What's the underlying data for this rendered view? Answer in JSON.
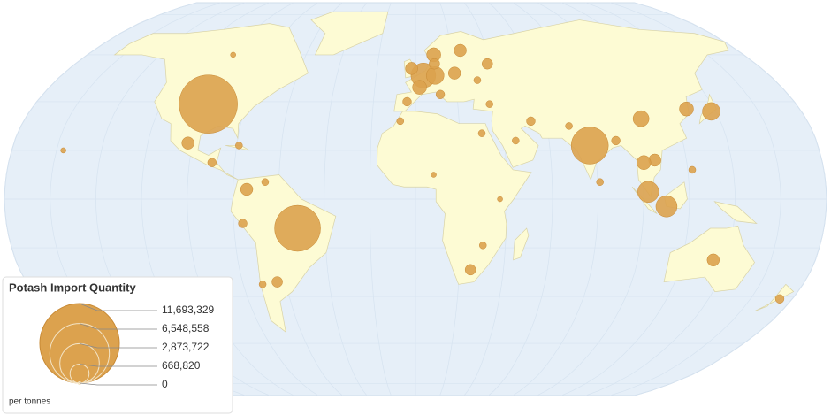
{
  "legend": {
    "title": "Potash Import Quantity",
    "values": [
      {
        "value": 11693329,
        "label": "11,693,329"
      },
      {
        "value": 6548558,
        "label": "6,548,558"
      },
      {
        "value": 2873722,
        "label": "2,873,722"
      },
      {
        "value": 668820,
        "label": "668,820"
      },
      0
    ],
    "unit": "per tonnes"
  },
  "color": "#dca24e",
  "bubbles": [
    {
      "lon": -98,
      "lat": 39,
      "value": 6290000
    },
    {
      "lon": -52,
      "lat": -12,
      "value": 3900000
    },
    {
      "lon": 78,
      "lat": 22,
      "value": 2550000
    },
    {
      "lon": 104,
      "lat": 33,
      "value": 470000
    },
    {
      "lon": 138,
      "lat": 36,
      "value": 580000
    },
    {
      "lon": 127,
      "lat": 37,
      "value": 370000
    },
    {
      "lon": 102,
      "lat": 3,
      "value": 830000
    },
    {
      "lon": 110,
      "lat": -3,
      "value": 830000
    },
    {
      "lon": 4,
      "lat": 51,
      "value": 1130000
    },
    {
      "lon": 2,
      "lat": 46,
      "value": 370000
    },
    {
      "lon": 10,
      "lat": 51,
      "value": 580000
    },
    {
      "lon": 20,
      "lat": 52,
      "value": 280000
    },
    {
      "lon": -2,
      "lat": 54,
      "value": 280000
    },
    {
      "lon": 10,
      "lat": 60,
      "value": 370000
    },
    {
      "lon": 25,
      "lat": 62,
      "value": 280000
    },
    {
      "lon": 10,
      "lat": 56,
      "value": 210000
    },
    {
      "lon": -4,
      "lat": 40,
      "value": 140000
    },
    {
      "lon": 12,
      "lat": 43,
      "value": 140000
    },
    {
      "lon": 106,
      "lat": 16,
      "value": 280000
    },
    {
      "lon": 101,
      "lat": 15,
      "value": 370000
    },
    {
      "lon": -102,
      "lat": 23,
      "value": 280000
    },
    {
      "lon": -74,
      "lat": 4,
      "value": 280000
    },
    {
      "lon": -64,
      "lat": -34,
      "value": 210000
    },
    {
      "lon": -71,
      "lat": -35,
      "value": 92000
    },
    {
      "lon": 134,
      "lat": -25,
      "value": 280000
    },
    {
      "lon": 174,
      "lat": -41,
      "value": 140000
    },
    {
      "lon": -100,
      "lat": 60,
      "value": 52000
    },
    {
      "lon": 25,
      "lat": -29,
      "value": 210000
    },
    {
      "lon": 30,
      "lat": 27,
      "value": 92000
    },
    {
      "lon": 45,
      "lat": 24,
      "value": 92000
    },
    {
      "lon": 53,
      "lat": 32,
      "value": 140000
    },
    {
      "lon": 35,
      "lat": 39,
      "value": 92000
    },
    {
      "lon": 81,
      "lat": 7,
      "value": 92000
    },
    {
      "lon": 122,
      "lat": 12,
      "value": 92000
    },
    {
      "lon": 90,
      "lat": 24,
      "value": 140000
    },
    {
      "lon": 70,
      "lat": 30,
      "value": 92000
    },
    {
      "lon": 31,
      "lat": 49,
      "value": 92000
    },
    {
      "lon": 38,
      "lat": 56,
      "value": 210000
    },
    {
      "lon": -79,
      "lat": 22,
      "value": 92000
    },
    {
      "lon": -90,
      "lat": 15,
      "value": 140000
    },
    {
      "lon": -66,
      "lat": 7,
      "value": 92000
    },
    {
      "lon": -76,
      "lat": -10,
      "value": 140000
    },
    {
      "lon": -157,
      "lat": 20,
      "value": 52000
    },
    {
      "lon": 37,
      "lat": 0,
      "value": 52000
    },
    {
      "lon": 8,
      "lat": 10,
      "value": 52000
    },
    {
      "lon": 30,
      "lat": -19,
      "value": 92000
    },
    {
      "lon": -7,
      "lat": 32,
      "value": 92000
    }
  ]
}
